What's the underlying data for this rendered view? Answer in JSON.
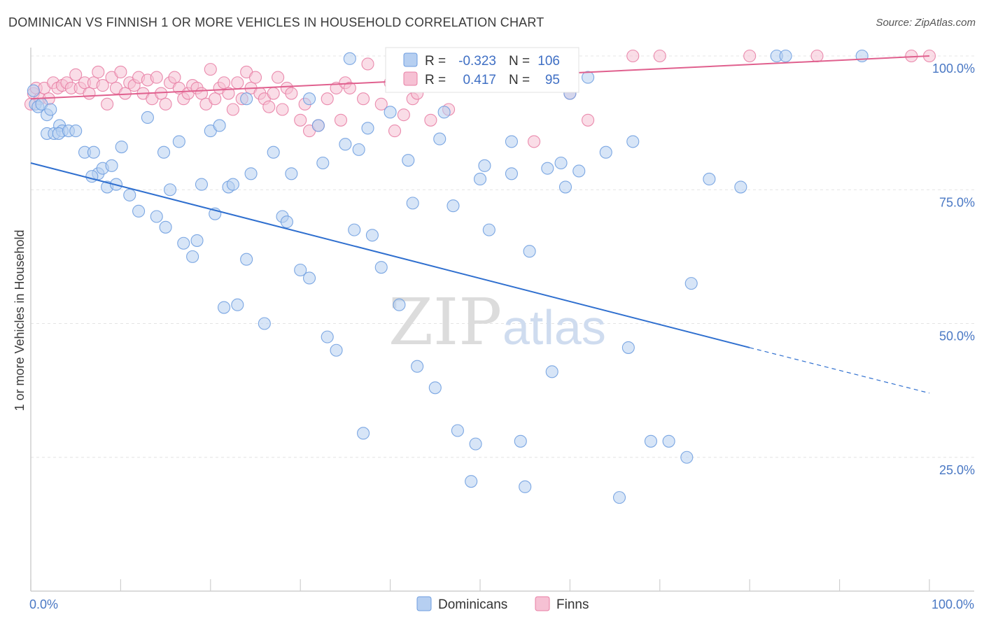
{
  "header": {
    "title": "DOMINICAN VS FINNISH 1 OR MORE VEHICLES IN HOUSEHOLD CORRELATION CHART",
    "source": "Source: ZipAtlas.com"
  },
  "watermark": {
    "zip": "ZIP",
    "atlas": "atlas"
  },
  "legend_top": [
    {
      "r_label": "R =",
      "r_value": "-0.323",
      "n_label": "N =",
      "n_value": "106"
    },
    {
      "r_label": "R =",
      "r_value": "0.417",
      "n_label": "N =",
      "n_value": "95"
    }
  ],
  "chart_data": {
    "type": "scatter",
    "title": "DOMINICAN VS FINNISH 1 OR MORE VEHICLES IN HOUSEHOLD CORRELATION CHART",
    "xlabel": "",
    "ylabel": "1 or more Vehicles in Household",
    "xlim": [
      0,
      100
    ],
    "ylim": [
      0,
      100
    ],
    "x_tick_labels": [
      "0.0%",
      "100.0%"
    ],
    "y_ticks": [
      25,
      50,
      75,
      100
    ],
    "y_tick_labels": [
      "25.0%",
      "50.0%",
      "75.0%",
      "100.0%"
    ],
    "grid": true,
    "legend_position": "top-center and bottom",
    "series": [
      {
        "name": "Dominicans",
        "color": "#6f9ee0",
        "fill": "#b6cff1",
        "r": -0.323,
        "n": 106,
        "trend": {
          "x0": 0,
          "y0": 80.0,
          "x1": 80,
          "y1": 45.5,
          "dash_to_x": 100,
          "dash_to_y": 37.0
        },
        "points": [
          [
            0.3,
            93.5
          ],
          [
            0.5,
            91
          ],
          [
            0.8,
            90.5
          ],
          [
            1.2,
            91
          ],
          [
            1.8,
            89
          ],
          [
            2.2,
            90
          ],
          [
            1.8,
            85.5
          ],
          [
            2.6,
            85.5
          ],
          [
            3.2,
            87
          ],
          [
            3.5,
            86
          ],
          [
            3.1,
            85.5
          ],
          [
            4.2,
            86
          ],
          [
            5.0,
            86
          ],
          [
            6.0,
            82
          ],
          [
            7.0,
            82
          ],
          [
            7.5,
            78
          ],
          [
            8.0,
            79
          ],
          [
            8.5,
            75.5
          ],
          [
            6.8,
            77.5
          ],
          [
            9.0,
            79.5
          ],
          [
            9.5,
            76
          ],
          [
            10.1,
            83
          ],
          [
            11.0,
            74
          ],
          [
            12.0,
            71
          ],
          [
            13.0,
            88.5
          ],
          [
            14.0,
            70
          ],
          [
            15.0,
            68
          ],
          [
            14.8,
            82
          ],
          [
            15.5,
            75
          ],
          [
            16.5,
            84
          ],
          [
            17.0,
            65
          ],
          [
            18.0,
            62.5
          ],
          [
            18.5,
            65.5
          ],
          [
            19.0,
            76
          ],
          [
            20.0,
            86
          ],
          [
            20.5,
            70.5
          ],
          [
            21.0,
            87
          ],
          [
            21.5,
            53
          ],
          [
            22.0,
            75.5
          ],
          [
            22.5,
            76
          ],
          [
            23.0,
            53.5
          ],
          [
            24.0,
            62
          ],
          [
            24.5,
            78
          ],
          [
            24.0,
            92
          ],
          [
            26.0,
            50
          ],
          [
            27.0,
            82
          ],
          [
            28.0,
            70
          ],
          [
            29.0,
            78
          ],
          [
            28.5,
            69
          ],
          [
            30.0,
            60
          ],
          [
            31.0,
            58.5
          ],
          [
            32.0,
            87
          ],
          [
            32.5,
            80
          ],
          [
            33.0,
            47.5
          ],
          [
            34.0,
            45
          ],
          [
            35.0,
            83.5
          ],
          [
            36.0,
            67.5
          ],
          [
            36.5,
            82.5
          ],
          [
            37.5,
            86.5
          ],
          [
            37.0,
            29.5
          ],
          [
            38.0,
            66.5
          ],
          [
            39.0,
            60.5
          ],
          [
            40.0,
            89.5
          ],
          [
            41.0,
            53.5
          ],
          [
            42.0,
            80.5
          ],
          [
            42.5,
            72.5
          ],
          [
            43.0,
            42
          ],
          [
            45.0,
            38
          ],
          [
            45.5,
            84.5
          ],
          [
            46.0,
            89.5
          ],
          [
            47.0,
            72
          ],
          [
            47.5,
            30
          ],
          [
            49.0,
            20.5
          ],
          [
            49.5,
            27.5
          ],
          [
            50.0,
            77
          ],
          [
            50.5,
            79.5
          ],
          [
            51.0,
            67.5
          ],
          [
            52.0,
            100
          ],
          [
            53.5,
            78
          ],
          [
            53.5,
            84
          ],
          [
            54.5,
            28
          ],
          [
            55.0,
            19.5
          ],
          [
            55.5,
            63.5
          ],
          [
            57.0,
            95.5
          ],
          [
            58.0,
            41
          ],
          [
            57.5,
            79
          ],
          [
            59.0,
            80
          ],
          [
            59.5,
            75.5
          ],
          [
            60.0,
            93
          ],
          [
            61.0,
            78.5
          ],
          [
            62.0,
            96
          ],
          [
            64.0,
            82
          ],
          [
            65.5,
            17.5
          ],
          [
            66.5,
            45.5
          ],
          [
            67.0,
            84
          ],
          [
            69.0,
            28
          ],
          [
            71.0,
            28
          ],
          [
            73.0,
            25
          ],
          [
            73.5,
            57.5
          ],
          [
            75.5,
            77
          ],
          [
            79.0,
            75.5
          ],
          [
            83.0,
            100
          ],
          [
            84.0,
            100
          ],
          [
            35.5,
            99.5
          ],
          [
            31.0,
            92
          ],
          [
            92.5,
            100
          ]
        ]
      },
      {
        "name": "Finns",
        "color": "#e87fa5",
        "fill": "#f6c1d4",
        "r": 0.417,
        "n": 95,
        "trend": {
          "x0": 0,
          "y0": 92.0,
          "x1": 100,
          "y1": 100.0
        },
        "points": [
          [
            0.0,
            91
          ],
          [
            0.3,
            93
          ],
          [
            0.6,
            94
          ],
          [
            1.0,
            92
          ],
          [
            1.5,
            94
          ],
          [
            2.0,
            92
          ],
          [
            2.5,
            95
          ],
          [
            3.0,
            94
          ],
          [
            3.5,
            94.5
          ],
          [
            4.0,
            95
          ],
          [
            4.5,
            94
          ],
          [
            5.0,
            96.5
          ],
          [
            5.5,
            94
          ],
          [
            6.0,
            95
          ],
          [
            6.5,
            93
          ],
          [
            7.0,
            95
          ],
          [
            7.5,
            97
          ],
          [
            8.0,
            94.5
          ],
          [
            8.5,
            91
          ],
          [
            9.0,
            96
          ],
          [
            9.5,
            94
          ],
          [
            10.0,
            97
          ],
          [
            10.5,
            93
          ],
          [
            11.0,
            95
          ],
          [
            11.5,
            94.5
          ],
          [
            12.0,
            96
          ],
          [
            12.5,
            93
          ],
          [
            13.0,
            95.5
          ],
          [
            13.5,
            92
          ],
          [
            14.0,
            96
          ],
          [
            14.5,
            93
          ],
          [
            15.0,
            91
          ],
          [
            15.5,
            95
          ],
          [
            16.0,
            96
          ],
          [
            16.5,
            94
          ],
          [
            17.0,
            92
          ],
          [
            17.5,
            93
          ],
          [
            18.0,
            94.5
          ],
          [
            18.5,
            94
          ],
          [
            19.0,
            93
          ],
          [
            19.5,
            91
          ],
          [
            20.0,
            97.5
          ],
          [
            20.5,
            92
          ],
          [
            21.0,
            94
          ],
          [
            21.5,
            95
          ],
          [
            22.0,
            93
          ],
          [
            22.5,
            90
          ],
          [
            23.0,
            95
          ],
          [
            23.5,
            92
          ],
          [
            24.0,
            97
          ],
          [
            24.5,
            94
          ],
          [
            25.0,
            96
          ],
          [
            25.5,
            93
          ],
          [
            26.0,
            92
          ],
          [
            26.5,
            90.5
          ],
          [
            27.0,
            93
          ],
          [
            27.5,
            96
          ],
          [
            28.0,
            90
          ],
          [
            28.5,
            94
          ],
          [
            29.0,
            93
          ],
          [
            30.0,
            88
          ],
          [
            30.5,
            91
          ],
          [
            31.0,
            86
          ],
          [
            32.0,
            87
          ],
          [
            33.0,
            92
          ],
          [
            34.0,
            94
          ],
          [
            34.5,
            88
          ],
          [
            35.0,
            95
          ],
          [
            35.5,
            94
          ],
          [
            37.0,
            92
          ],
          [
            37.5,
            98.5
          ],
          [
            39.0,
            91
          ],
          [
            40.0,
            95
          ],
          [
            40.5,
            86
          ],
          [
            41.5,
            89
          ],
          [
            42.5,
            92
          ],
          [
            43.0,
            93
          ],
          [
            44.5,
            88
          ],
          [
            45.0,
            95
          ],
          [
            46.5,
            90
          ],
          [
            47.5,
            95.5
          ],
          [
            48.5,
            97.5
          ],
          [
            50.0,
            97
          ],
          [
            51.0,
            100
          ],
          [
            53.0,
            99
          ],
          [
            54.0,
            96.5
          ],
          [
            55.0,
            95
          ],
          [
            56.0,
            84
          ],
          [
            58.0,
            97.5
          ],
          [
            60.0,
            93
          ],
          [
            62.0,
            88
          ],
          [
            67.0,
            100
          ],
          [
            70.0,
            100
          ],
          [
            80.0,
            100
          ],
          [
            87.5,
            100
          ],
          [
            98.0,
            100
          ],
          [
            100.0,
            100
          ]
        ]
      }
    ]
  },
  "legend_bottom": [
    {
      "label": "Dominicans"
    },
    {
      "label": "Finns"
    }
  ]
}
